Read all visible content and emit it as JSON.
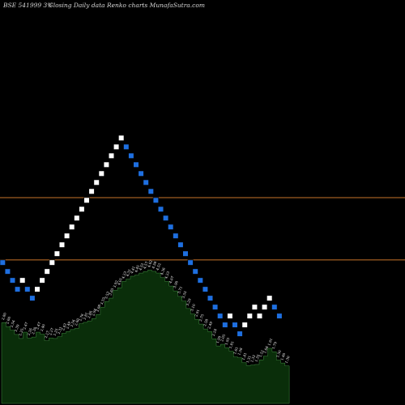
{
  "header": {
    "symbol": "BSE 541999 3%",
    "caption": "Closing Daily data  Renko  charts MunafaSutra.com"
  },
  "colors": {
    "background": "#000000",
    "up_brick": "#ffffff",
    "down_brick": "#1e6fe0",
    "reference_line": "#c8742a",
    "volume_fill": "#0a2e0a",
    "volume_line": "#3f8a3f"
  },
  "chart_data": {
    "type": "renko",
    "bricks": [
      {
        "level": 70,
        "dir": "down"
      },
      {
        "level": 69,
        "dir": "down"
      },
      {
        "level": 68,
        "dir": "down"
      },
      {
        "level": 67,
        "dir": "down"
      },
      {
        "level": 68,
        "dir": "up"
      },
      {
        "level": 67,
        "dir": "down"
      },
      {
        "level": 66,
        "dir": "down"
      },
      {
        "level": 67,
        "dir": "up"
      },
      {
        "level": 68,
        "dir": "up"
      },
      {
        "level": 69,
        "dir": "up"
      },
      {
        "level": 70,
        "dir": "up"
      },
      {
        "level": 71,
        "dir": "up"
      },
      {
        "level": 72,
        "dir": "up"
      },
      {
        "level": 73,
        "dir": "up"
      },
      {
        "level": 74,
        "dir": "up"
      },
      {
        "level": 75,
        "dir": "up"
      },
      {
        "level": 76,
        "dir": "up"
      },
      {
        "level": 77,
        "dir": "up"
      },
      {
        "level": 78,
        "dir": "up"
      },
      {
        "level": 79,
        "dir": "up"
      },
      {
        "level": 80,
        "dir": "up"
      },
      {
        "level": 81,
        "dir": "up"
      },
      {
        "level": 82,
        "dir": "up"
      },
      {
        "level": 83,
        "dir": "up"
      },
      {
        "level": 84,
        "dir": "up"
      },
      {
        "level": 83,
        "dir": "down"
      },
      {
        "level": 82,
        "dir": "down"
      },
      {
        "level": 81,
        "dir": "down"
      },
      {
        "level": 80,
        "dir": "down"
      },
      {
        "level": 79,
        "dir": "down"
      },
      {
        "level": 78,
        "dir": "down"
      },
      {
        "level": 77,
        "dir": "down"
      },
      {
        "level": 76,
        "dir": "down"
      },
      {
        "level": 75,
        "dir": "down"
      },
      {
        "level": 74,
        "dir": "down"
      },
      {
        "level": 73,
        "dir": "down"
      },
      {
        "level": 72,
        "dir": "down"
      },
      {
        "level": 71,
        "dir": "down"
      },
      {
        "level": 70,
        "dir": "down"
      },
      {
        "level": 69,
        "dir": "down"
      },
      {
        "level": 68,
        "dir": "down"
      },
      {
        "level": 67,
        "dir": "down"
      },
      {
        "level": 66,
        "dir": "down"
      },
      {
        "level": 65,
        "dir": "down"
      },
      {
        "level": 64,
        "dir": "down"
      },
      {
        "level": 63,
        "dir": "down"
      },
      {
        "level": 64,
        "dir": "up"
      },
      {
        "level": 63,
        "dir": "down"
      },
      {
        "level": 62,
        "dir": "down"
      },
      {
        "level": 63,
        "dir": "up"
      },
      {
        "level": 64,
        "dir": "up"
      },
      {
        "level": 65,
        "dir": "up"
      },
      {
        "level": 64,
        "dir": "up"
      },
      {
        "level": 65,
        "dir": "up"
      },
      {
        "level": 66,
        "dir": "up"
      },
      {
        "level": 65,
        "dir": "down"
      },
      {
        "level": 64,
        "dir": "down"
      }
    ],
    "reference_lines": [
      77.3,
      70.3
    ],
    "ylim": [
      54,
      99.5
    ],
    "volume": {
      "values": [
        2.8,
        2.66,
        2.54,
        2.39,
        2.25,
        2.47,
        2.26,
        2.3,
        2.47,
        2.4,
        2.17,
        2.27,
        2.25,
        2.31,
        2.43,
        2.49,
        2.56,
        2.6,
        2.76,
        2.81,
        2.86,
        2.94,
        3.08,
        3.33,
        3.53,
        3.65,
        3.92,
        4.01,
        4.23,
        4.31,
        4.41,
        4.45,
        4.52,
        4.57,
        4.62,
        4.58,
        4.52,
        4.36,
        4.23,
        4.07,
        3.9,
        3.71,
        3.55,
        3.29,
        3.1,
        2.91,
        2.75,
        2.58,
        2.49,
        2.24,
        1.99,
        2.05,
        1.93,
        1.81,
        1.61,
        1.58,
        1.41,
        1.31,
        1.33,
        1.35,
        1.51,
        1.64,
        1.91,
        1.79,
        1.5,
        1.4,
        1.3
      ],
      "labels": [
        "2.80",
        "2.66",
        "2.54",
        "2.39",
        "2.25",
        "2.47",
        "2.26",
        "2.30",
        "2.47",
        "2.40",
        "2.17",
        "2.27",
        "2.25",
        "2.31",
        "2.43",
        "2.49",
        "2.56",
        "2.60",
        "2.76",
        "2.81",
        "2.86",
        "2.94",
        "3.08",
        "3.33",
        "3.53",
        "3.65",
        "3.92",
        "4.01",
        "4.23",
        "4.31",
        "4.41",
        "4.45",
        "4.52",
        "4.57",
        "4.62",
        "4.58",
        "4.52",
        "4.36",
        "4.23",
        "4.07",
        "3.90",
        "3.71",
        "3.55",
        "3.29",
        "3.10",
        "2.91",
        "2.75",
        "2.58",
        "2.49",
        "2.24",
        "1.99",
        "2.05",
        "1.93",
        "1.81",
        "1.61",
        "1.58",
        "1.41",
        "1.31",
        "1.33",
        "1.35",
        "1.51",
        "1.64",
        "1.91",
        "1.79",
        "1.50",
        "1.40",
        "1.30"
      ],
      "ylim": [
        0,
        5.0
      ]
    }
  }
}
